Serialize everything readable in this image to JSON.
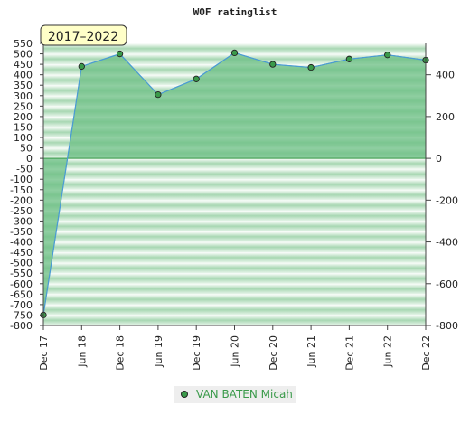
{
  "chart_data": {
    "type": "area",
    "title": "WOF ratinglist",
    "badge": "2017–2022",
    "categories": [
      "Dec 17",
      "Jun 18",
      "Dec 18",
      "Jun 19",
      "Dec 19",
      "Jun 20",
      "Dec 20",
      "Jun 21",
      "Dec 21",
      "Jun 22",
      "Dec 22"
    ],
    "series": [
      {
        "name": "VAN BATEN Micah",
        "values": [
          -750,
          440,
          500,
          305,
          380,
          505,
          450,
          435,
          475,
          495,
          470
        ]
      }
    ],
    "ylim": [
      -800,
      550
    ],
    "ytick_step": 50,
    "y2lim": [
      -800,
      550
    ],
    "y2ticks": [
      400,
      200,
      0,
      -200,
      -400,
      -600,
      -800
    ],
    "grid": true,
    "legend": "bottom-center",
    "colors": {
      "fill": "#6cbf84",
      "line": "#4a9bd6",
      "marker": "#3a9a4a",
      "legend_text": "#3a9a4a",
      "badge_bg": "#ffffc8"
    }
  }
}
